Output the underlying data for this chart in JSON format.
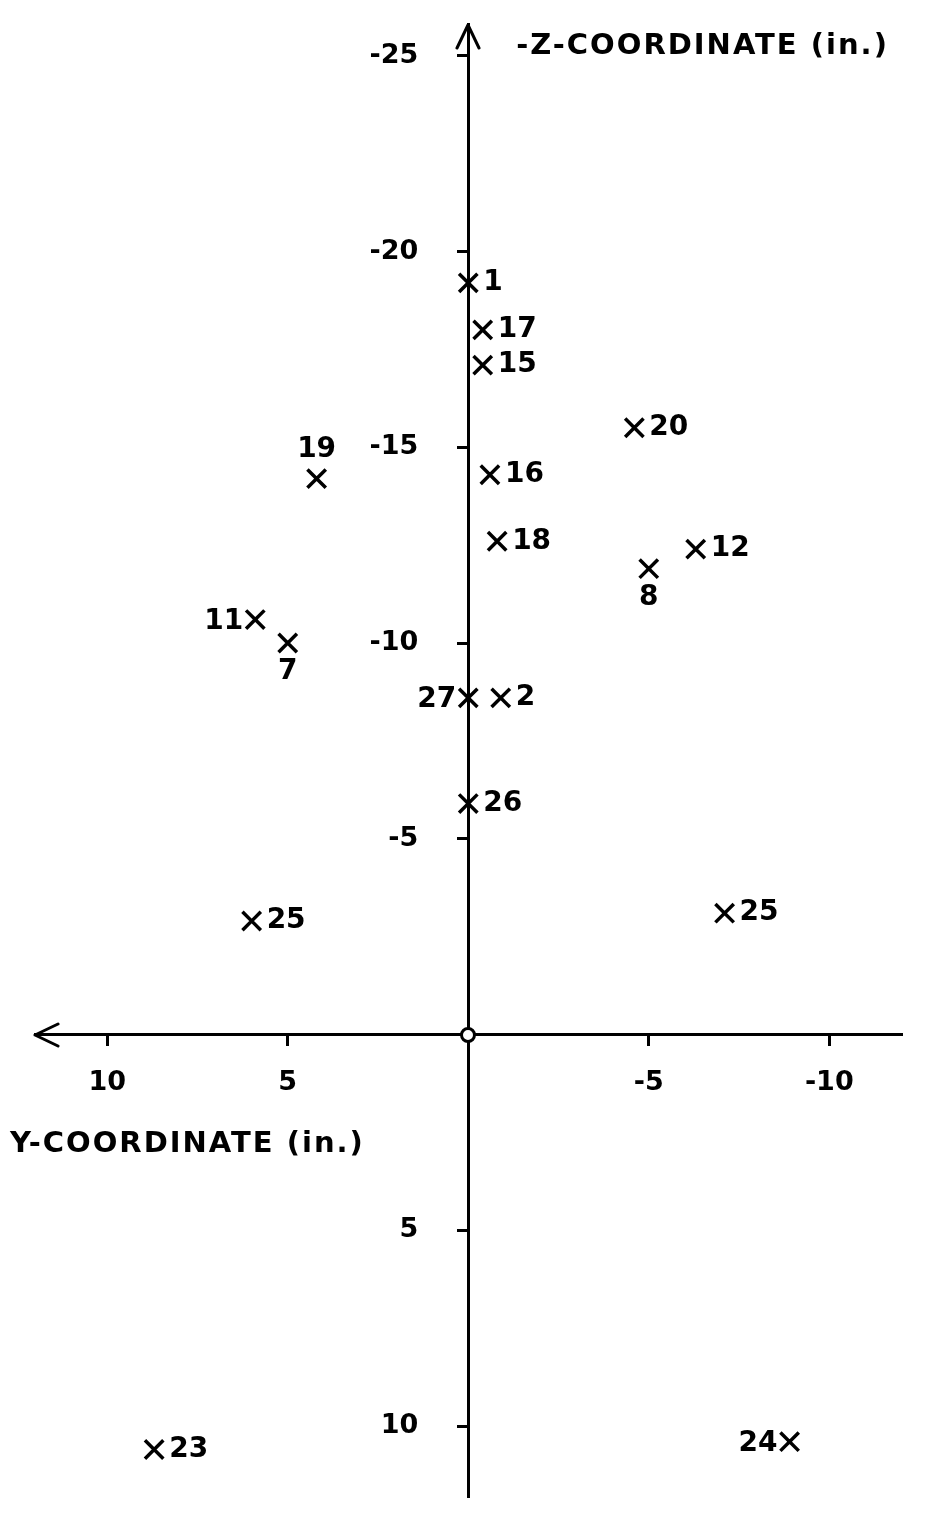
{
  "chart_data": {
    "type": "scatter",
    "xlabel": "Y-COORDINATE (in.)",
    "ylabel": "-Z-COORDINATE (in.)",
    "x": [
      0,
      -0.4,
      -0.4,
      -4.6,
      4.2,
      -0.6,
      -0.8,
      -6.3,
      -5.0,
      5.9,
      5.0,
      0,
      -0.9,
      0,
      6.0,
      -7.1,
      8.7,
      -8.9
    ],
    "values": [
      -19.2,
      -18.0,
      -17.1,
      -15.5,
      -14.2,
      -14.3,
      -12.6,
      -12.4,
      -11.9,
      -10.6,
      -10.0,
      -8.6,
      -8.6,
      -5.9,
      -2.9,
      -3.1,
      10.6,
      10.4
    ],
    "color": "#000000",
    "marker": "cross",
    "xlim": [
      12,
      -12
    ],
    "xticks": [
      10,
      5,
      -5,
      -10
    ],
    "ylim": [
      11.8,
      -25.8
    ],
    "yticks": [
      -25,
      -20,
      -15,
      -10,
      -5,
      5,
      10
    ],
    "annotations": [
      {
        "text": "1",
        "x": 0,
        "y": -19.2
      },
      {
        "text": "17",
        "x": -0.4,
        "y": -18.0
      },
      {
        "text": "15",
        "x": -0.4,
        "y": -17.1
      },
      {
        "text": "20",
        "x": -4.6,
        "y": -15.5
      },
      {
        "text": "19",
        "x": 4.2,
        "y": -14.2
      },
      {
        "text": "16",
        "x": -0.6,
        "y": -14.3
      },
      {
        "text": "18",
        "x": -0.8,
        "y": -12.6
      },
      {
        "text": "12",
        "x": -6.3,
        "y": -12.4
      },
      {
        "text": "8",
        "x": -5.0,
        "y": -11.9
      },
      {
        "text": "11",
        "x": 5.9,
        "y": -10.6
      },
      {
        "text": "7",
        "x": 5.0,
        "y": -10.0
      },
      {
        "text": "27",
        "x": 0,
        "y": -8.6
      },
      {
        "text": "2",
        "x": -0.9,
        "y": -8.6
      },
      {
        "text": "26",
        "x": 0,
        "y": -5.9
      },
      {
        "text": "25",
        "x": 6.0,
        "y": -2.9
      },
      {
        "text": "25",
        "x": -7.1,
        "y": -3.1
      },
      {
        "text": "23",
        "x": 8.7,
        "y": 10.6
      },
      {
        "text": "24",
        "x": -8.9,
        "y": 10.4
      }
    ]
  }
}
